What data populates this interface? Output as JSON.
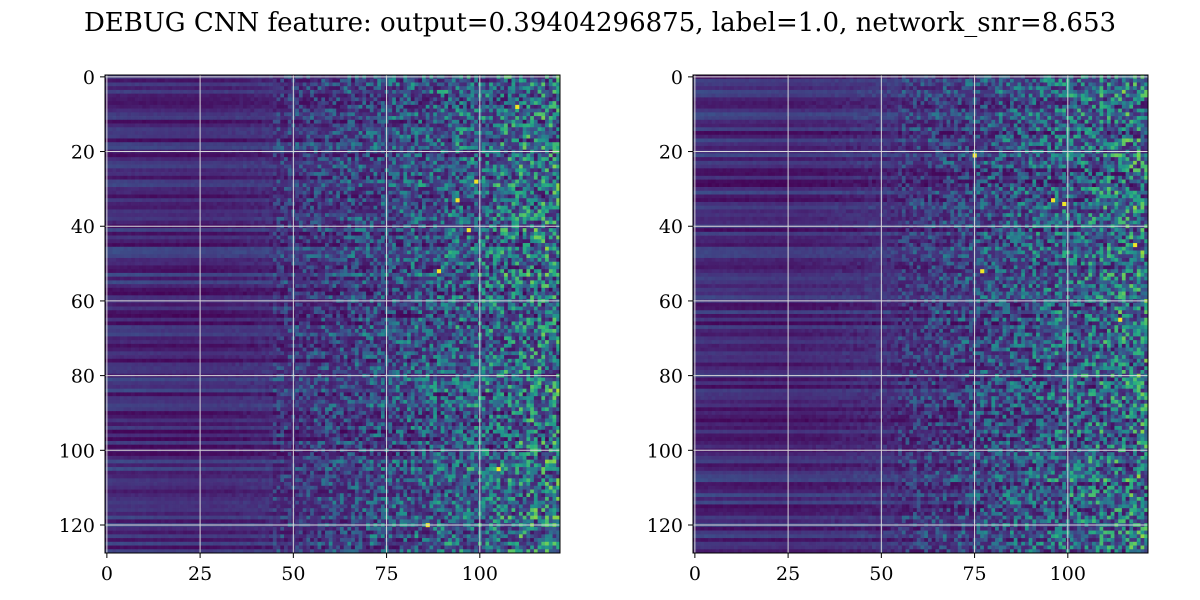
{
  "figure": {
    "title": "DEBUG CNN feature: output=0.39404296875, label=1.0, network_snr=8.653"
  },
  "chart_data": [
    {
      "type": "heatmap",
      "title": "",
      "xlabel": "",
      "ylabel": "",
      "shape": [
        128,
        122
      ],
      "xlim": [
        -0.5,
        121.5
      ],
      "ylim": [
        127.5,
        -0.5
      ],
      "xticks": [
        0,
        25,
        50,
        75,
        100
      ],
      "yticks": [
        0,
        20,
        40,
        60,
        80,
        100,
        120
      ],
      "grid": true,
      "colormap": "viridis",
      "pattern": "low, row-banded values for columns 0-50; increasingly speckled higher values for columns 50-121",
      "bright_points": [
        [
          110,
          8
        ],
        [
          99,
          28
        ],
        [
          94,
          33
        ],
        [
          97,
          41
        ],
        [
          89,
          52
        ],
        [
          105,
          105
        ],
        [
          86,
          120
        ]
      ]
    },
    {
      "type": "heatmap",
      "title": "",
      "xlabel": "",
      "ylabel": "",
      "shape": [
        128,
        122
      ],
      "xlim": [
        -0.5,
        121.5
      ],
      "ylim": [
        127.5,
        -0.5
      ],
      "xticks": [
        0,
        25,
        50,
        75,
        100
      ],
      "yticks": [
        0,
        20,
        40,
        60,
        80,
        100,
        120
      ],
      "grid": true,
      "colormap": "viridis",
      "pattern": "low, row-banded values for columns 0-50; increasingly speckled higher values for columns 60-121",
      "bright_points": [
        [
          75,
          21
        ],
        [
          96,
          33
        ],
        [
          99,
          34
        ],
        [
          118,
          45
        ],
        [
          77,
          52
        ],
        [
          114,
          65
        ]
      ]
    }
  ],
  "colors": {
    "viridis": [
      "#440154",
      "#472c7a",
      "#3b528b",
      "#2c728e",
      "#21918c",
      "#28ae80",
      "#5ec962",
      "#addc30",
      "#fde725"
    ],
    "grid": "#d9d9d9",
    "axes": "#000000",
    "background": "#ffffff"
  }
}
